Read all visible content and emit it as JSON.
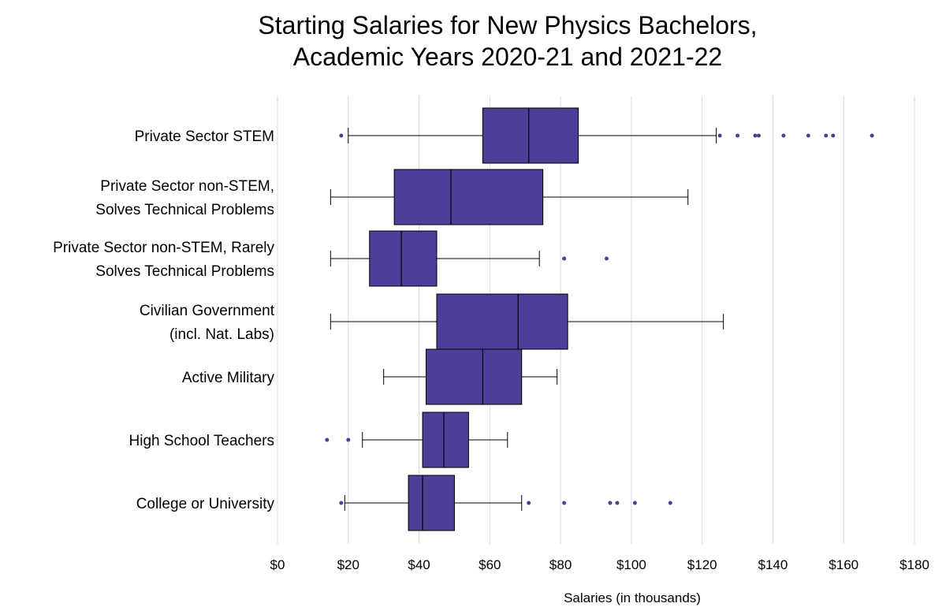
{
  "chart_data": {
    "type": "boxplot",
    "title_lines": [
      "Starting Salaries for New Physics Bachelors,",
      "Academic Years 2020-21 and 2021-22"
    ],
    "xlabel": "Salaries (in thousands)",
    "xlim": [
      0,
      180
    ],
    "xticks": [
      0,
      20,
      40,
      60,
      80,
      100,
      120,
      140,
      160,
      180
    ],
    "xtick_labels": [
      "$0",
      "$20",
      "$40",
      "$60",
      "$80",
      "$100",
      "$120",
      "$140",
      "$160",
      "$180"
    ],
    "grid": "vertical",
    "box_color": "#4c3f98",
    "categories": [
      {
        "label": [
          "Private Sector STEM"
        ],
        "whisker_low": 20,
        "q1": 58,
        "median": 71,
        "q3": 85,
        "whisker_high": 124,
        "outliers": [
          18,
          125,
          130,
          135,
          136,
          143,
          150,
          155,
          157,
          168
        ]
      },
      {
        "label": [
          "Private Sector non-STEM,",
          "Solves Technical Problems"
        ],
        "whisker_low": 15,
        "q1": 33,
        "median": 49,
        "q3": 75,
        "whisker_high": 116,
        "outliers": []
      },
      {
        "label": [
          "Private Sector non-STEM, Rarely",
          "Solves Technical Problems"
        ],
        "whisker_low": 15,
        "q1": 26,
        "median": 35,
        "q3": 45,
        "whisker_high": 74,
        "outliers": [
          81,
          93
        ]
      },
      {
        "label": [
          "Civilian Government",
          "(incl. Nat. Labs)"
        ],
        "whisker_low": 15,
        "q1": 45,
        "median": 68,
        "q3": 82,
        "whisker_high": 126,
        "outliers": []
      },
      {
        "label": [
          "Active Military"
        ],
        "whisker_low": 30,
        "q1": 42,
        "median": 58,
        "q3": 69,
        "whisker_high": 79,
        "outliers": []
      },
      {
        "label": [
          "High School Teachers"
        ],
        "whisker_low": 24,
        "q1": 41,
        "median": 47,
        "q3": 54,
        "whisker_high": 65,
        "outliers": [
          14,
          20
        ]
      },
      {
        "label": [
          "College or University"
        ],
        "whisker_low": 19,
        "q1": 37,
        "median": 41,
        "q3": 50,
        "whisker_high": 69,
        "outliers": [
          18,
          71,
          81,
          94,
          96,
          101,
          111
        ]
      }
    ]
  }
}
